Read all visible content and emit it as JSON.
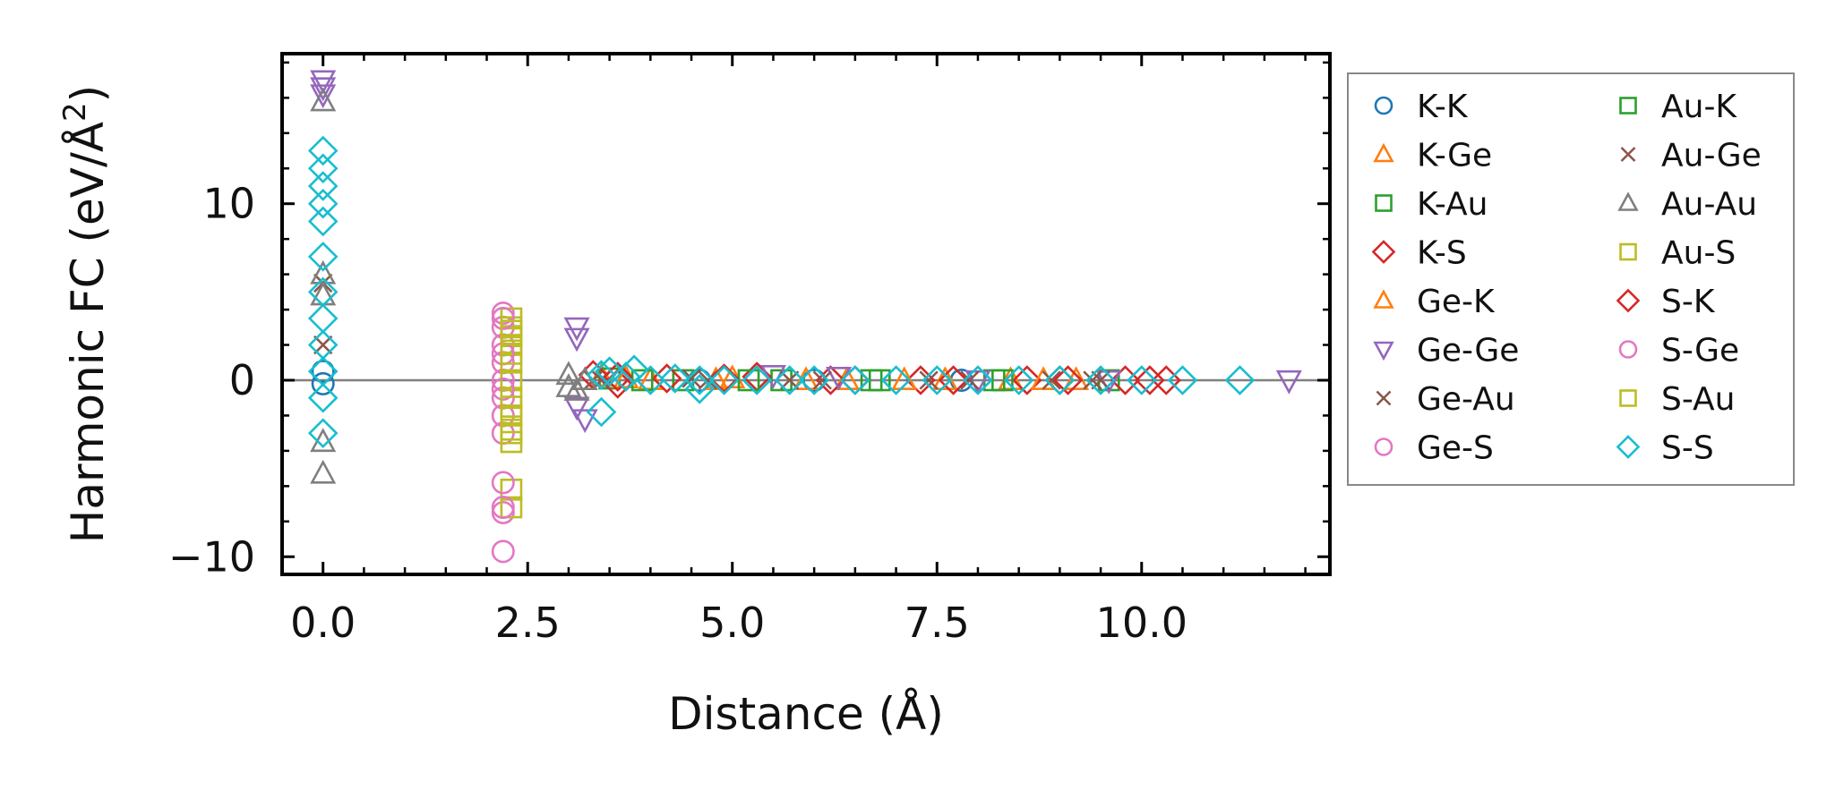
{
  "chart_data": {
    "type": "scatter",
    "xlabel": "Distance (Å)",
    "ylabel_main": "Harmonic FC (eV/Å",
    "ylabel_sup": "2",
    "ylabel_close": ")",
    "xlim": [
      -0.5,
      12.3
    ],
    "ylim": [
      -11,
      18.5
    ],
    "xticks": [
      0.0,
      2.5,
      5.0,
      7.5,
      10.0
    ],
    "xtick_labels": [
      "0.0",
      "2.5",
      "5.0",
      "7.5",
      "10.0"
    ],
    "yticks": [
      -10,
      0,
      10
    ],
    "ytick_labels": [
      "−10",
      "0",
      "10"
    ],
    "zero_line": true,
    "legend_position": "outside-right",
    "series": [
      {
        "name": "K-K",
        "marker": "circle",
        "color": "#1f77b4",
        "x": [
          0.0,
          0.0,
          4.6,
          6.0,
          7.8
        ],
        "y": [
          0.5,
          -0.2,
          0.0,
          0.0,
          0.0
        ]
      },
      {
        "name": "K-Ge",
        "marker": "triangle-up",
        "color": "#ff7f0e",
        "x": [
          3.4,
          4.0,
          5.0,
          6.4,
          7.6,
          8.4,
          9.2
        ],
        "y": [
          0.2,
          0.0,
          0.1,
          0.0,
          0.0,
          0.0,
          0.0
        ]
      },
      {
        "name": "K-Au",
        "marker": "square",
        "color": "#2ca02c",
        "x": [
          3.5,
          4.4,
          5.6,
          6.8,
          8.2,
          9.6
        ],
        "y": [
          0.1,
          0.0,
          0.0,
          0.0,
          0.0,
          0.0
        ]
      },
      {
        "name": "K-S",
        "marker": "diamond",
        "color": "#d62728",
        "x": [
          3.3,
          3.6,
          4.2,
          5.3,
          6.2,
          7.3,
          8.6,
          9.0,
          9.8,
          10.3
        ],
        "y": [
          0.3,
          -0.2,
          0.1,
          0.2,
          0.0,
          0.0,
          0.0,
          0.0,
          0.0,
          0.0
        ]
      },
      {
        "name": "Ge-K",
        "marker": "triangle-up",
        "color": "#ff7f0e",
        "x": [
          3.7,
          4.8,
          5.9,
          7.1,
          8.8
        ],
        "y": [
          0.1,
          0.0,
          0.0,
          0.0,
          0.0
        ]
      },
      {
        "name": "Ge-Ge",
        "marker": "triangle-down",
        "color": "#9467bd",
        "x": [
          0.0,
          0.0,
          0.0,
          3.1,
          3.1,
          3.1,
          3.2,
          5.5,
          6.3,
          8.0,
          9.6,
          11.8
        ],
        "y": [
          17.0,
          16.6,
          16.2,
          3.0,
          2.4,
          -1.5,
          -2.2,
          0.3,
          0.2,
          0.0,
          0.0,
          0.0
        ]
      },
      {
        "name": "Ge-Au",
        "marker": "x",
        "color": "#8c564b",
        "x": [
          0.0,
          0.0,
          3.4,
          4.5,
          5.7,
          7.4,
          8.9,
          9.4
        ],
        "y": [
          5.5,
          2.0,
          0.0,
          0.1,
          0.0,
          0.0,
          0.0,
          0.0
        ]
      },
      {
        "name": "Ge-S",
        "marker": "circle",
        "color": "#e377c2",
        "x": [
          2.2,
          2.2,
          2.2,
          2.2,
          2.2,
          2.2,
          2.2,
          2.2,
          2.2,
          2.2
        ],
        "y": [
          3.8,
          3.0,
          2.0,
          1.0,
          0.0,
          -1.0,
          -2.0,
          -3.0,
          -7.5,
          -9.7
        ]
      },
      {
        "name": "Au-K",
        "marker": "square",
        "color": "#2ca02c",
        "x": [
          3.9,
          5.2,
          6.7,
          8.3
        ],
        "y": [
          0.0,
          0.0,
          0.0,
          0.0
        ]
      },
      {
        "name": "Au-Ge",
        "marker": "x",
        "color": "#8c564b",
        "x": [
          3.3,
          4.7,
          6.1,
          7.9,
          9.5
        ],
        "y": [
          0.0,
          0.0,
          0.0,
          0.0,
          0.0
        ]
      },
      {
        "name": "Au-Au",
        "marker": "triangle-up",
        "color": "#7f7f7f",
        "x": [
          0.0,
          0.0,
          0.0,
          0.0,
          0.0,
          3.0,
          3.0,
          3.1,
          3.2
        ],
        "y": [
          15.8,
          6.0,
          4.8,
          -3.5,
          -5.3,
          0.3,
          -0.4,
          -0.6,
          0.0
        ]
      },
      {
        "name": "Au-S",
        "marker": "square",
        "color": "#bcbd22",
        "x": [
          2.3,
          2.3,
          2.3,
          2.3,
          2.3,
          2.3,
          2.3,
          2.3,
          2.3,
          2.3,
          2.3,
          2.3
        ],
        "y": [
          3.5,
          3.0,
          2.5,
          2.0,
          1.0,
          0.0,
          -1.0,
          -2.0,
          -3.0,
          -3.5,
          -6.2,
          -7.2
        ]
      },
      {
        "name": "S-K",
        "marker": "diamond",
        "color": "#d62728",
        "x": [
          3.6,
          4.9,
          6.5,
          7.7,
          9.1,
          10.1
        ],
        "y": [
          0.2,
          0.1,
          0.0,
          0.0,
          0.0,
          0.0
        ]
      },
      {
        "name": "S-Ge",
        "marker": "circle",
        "color": "#e377c2",
        "x": [
          2.2,
          2.2,
          2.2,
          2.2,
          2.2
        ],
        "y": [
          3.5,
          1.5,
          -0.5,
          -5.8,
          -7.2
        ]
      },
      {
        "name": "S-Au",
        "marker": "square",
        "color": "#bcbd22",
        "x": [
          2.3,
          2.3,
          2.3,
          2.3
        ],
        "y": [
          2.8,
          1.5,
          -1.5,
          -2.8
        ]
      },
      {
        "name": "S-S",
        "marker": "diamond",
        "color": "#17becf",
        "x": [
          0.0,
          0.0,
          0.0,
          0.0,
          0.0,
          0.0,
          0.0,
          0.0,
          0.0,
          0.0,
          0.0,
          0.0,
          3.4,
          3.4,
          3.5,
          3.7,
          3.8,
          4.0,
          4.3,
          4.6,
          4.6,
          4.9,
          5.3,
          5.7,
          6.0,
          6.5,
          7.0,
          7.5,
          8.0,
          8.5,
          9.0,
          9.5,
          10.0,
          10.5,
          11.2
        ],
        "y": [
          13.0,
          12.0,
          11.0,
          10.0,
          9.0,
          7.0,
          5.0,
          3.5,
          2.0,
          0.5,
          -1.0,
          -3.0,
          0.3,
          -1.8,
          0.5,
          0.2,
          0.6,
          0.0,
          0.1,
          0.0,
          -0.5,
          0.0,
          0.0,
          0.0,
          0.0,
          0.0,
          0.0,
          0.0,
          0.0,
          0.0,
          0.0,
          0.0,
          0.0,
          0.0,
          0.0
        ]
      }
    ]
  }
}
